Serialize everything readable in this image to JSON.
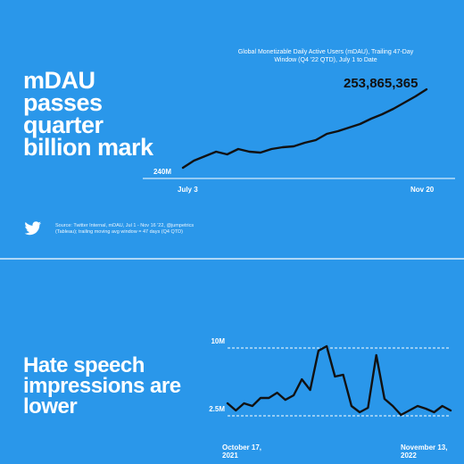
{
  "chart_data": [
    {
      "type": "line",
      "title": "mDAU passes quarter billion mark",
      "subtitle": "Global Monetizable Daily Active Users (mDAU), Trailing 47-Day Window (Q4 '22 QTD), July 1 to Date",
      "annotation": "253,865,365",
      "source": "Source: Twitter Internal, mDAU, Jul 1 - Nov 16 '22, @jumpetrics (Tableau); trailing moving avg window = 47 days (Q4 QTD)",
      "categories": [
        "July 3",
        null,
        null,
        null,
        null,
        null,
        null,
        null,
        null,
        null,
        null,
        null,
        null,
        null,
        null,
        null,
        null,
        null,
        null,
        null,
        null,
        null,
        "Nov 20"
      ],
      "series": [
        {
          "color": "#111111",
          "values": [
            241.67,
            242.78,
            243.47,
            244.17,
            243.75,
            244.58,
            244.17,
            244.03,
            244.58,
            244.86,
            245.0,
            245.56,
            245.97,
            246.94,
            247.36,
            247.92,
            248.47,
            249.31,
            250.0,
            250.83,
            251.81,
            252.78,
            253.87
          ]
        }
      ],
      "ylim": [
        240,
        254
      ],
      "yticks": [
        {
          "value": 240,
          "label": "240M"
        }
      ],
      "grid": true,
      "grid_style": "solid"
    },
    {
      "type": "line",
      "title": "Hate speech impressions are lower",
      "categories": [
        "October 17, 2021",
        null,
        null,
        null,
        null,
        null,
        null,
        null,
        null,
        null,
        null,
        null,
        null,
        null,
        null,
        null,
        null,
        null,
        null,
        null,
        null,
        null,
        null,
        null,
        null,
        null,
        null,
        "November 13, 2022"
      ],
      "series": [
        {
          "color": "#111111",
          "values": [
            3.88,
            3.09,
            3.88,
            3.58,
            4.47,
            4.47,
            5.06,
            4.27,
            4.77,
            6.54,
            5.36,
            9.7,
            10.2,
            6.84,
            7.04,
            3.58,
            2.89,
            3.39,
            9.21,
            4.37,
            3.58,
            2.6,
            3.09,
            3.58,
            3.29,
            2.89,
            3.58,
            3.09
          ]
        }
      ],
      "ylim": [
        1.5,
        11
      ],
      "yticks": [
        {
          "value": 10,
          "label": "10M"
        },
        {
          "value": 2.5,
          "label": "2.5M"
        }
      ],
      "grid": true,
      "grid_style": "dashed"
    }
  ]
}
